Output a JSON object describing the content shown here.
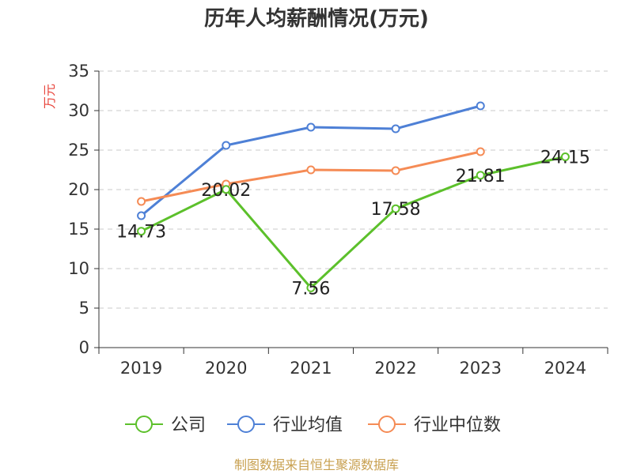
{
  "chart_data": {
    "type": "line",
    "title": "历年人均薪酬情况(万元)",
    "ylabel": "万元",
    "ylabel_color": "#e8453c",
    "categories": [
      "2019",
      "2020",
      "2021",
      "2022",
      "2023",
      "2024"
    ],
    "ylim": [
      0,
      35
    ],
    "yticks": [
      0,
      5,
      10,
      15,
      20,
      25,
      30,
      35
    ],
    "grid": true,
    "legend_position": "bottom",
    "series": [
      {
        "name": "公司",
        "color": "#5cc02b",
        "values": [
          14.73,
          20.02,
          7.56,
          17.58,
          21.81,
          24.15
        ],
        "labels": [
          "14.73",
          "20.02",
          "7.56",
          "17.58",
          "21.81",
          "24.15"
        ]
      },
      {
        "name": "行业均值",
        "color": "#4e80d6",
        "values": [
          16.7,
          25.6,
          27.9,
          27.7,
          30.6,
          null
        ]
      },
      {
        "name": "行业中位数",
        "color": "#f58b55",
        "values": [
          18.5,
          20.7,
          22.5,
          22.4,
          24.8,
          null
        ]
      }
    ],
    "source": "制图数据来自恒生聚源数据库",
    "source_color": "#c8a050"
  }
}
